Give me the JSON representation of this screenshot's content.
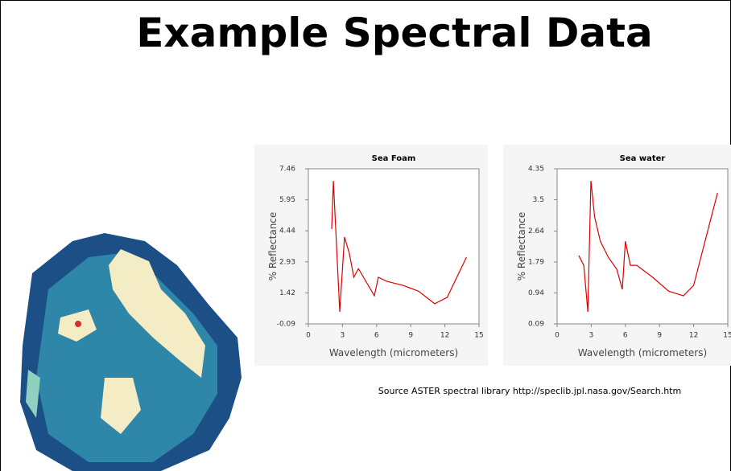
{
  "slide": {
    "title": "Example Spectral Data",
    "source": "Source ASTER spectral library http://speclib.jpl.nasa.gov/Search.htm"
  },
  "chart_data": [
    {
      "type": "line",
      "title": "Sea Foam",
      "x_label": "Wavelength (micrometers)",
      "y_label": "% Reflectance",
      "x": [
        2.05,
        2.2,
        2.76,
        3.18,
        3.6,
        4.0,
        4.4,
        5.8,
        6.15,
        6.9,
        8.3,
        9.7,
        11.1,
        12.2,
        13.9
      ],
      "series": [
        {
          "color": "#e00000",
          "values": [
            4.53,
            6.87,
            0.5,
            4.14,
            3.35,
            2.18,
            2.6,
            1.28,
            2.18,
            1.98,
            1.79,
            1.5,
            0.89,
            1.2,
            3.16
          ]
        }
      ],
      "xlim": [
        0,
        15
      ],
      "xticks": [
        0,
        3,
        6,
        9,
        12,
        15
      ],
      "ylim": [
        -0.09,
        7.46
      ],
      "yticks": [
        -0.09,
        1.42,
        2.93,
        4.44,
        5.95,
        7.46
      ]
    },
    {
      "type": "line",
      "title": "Sea water",
      "x_label": "Wavelength (micrometers)",
      "y_label": "% Reflectance",
      "x": [
        1.9,
        2.34,
        2.7,
        2.97,
        3.3,
        3.8,
        4.5,
        5.24,
        5.73,
        6.0,
        6.44,
        7.0,
        8.4,
        9.8,
        11.1,
        12.0,
        14.1
      ],
      "series": [
        {
          "color": "#e00000",
          "values": [
            1.97,
            1.7,
            0.42,
            4.02,
            3.03,
            2.36,
            1.92,
            1.59,
            1.04,
            2.36,
            1.7,
            1.7,
            1.37,
            0.99,
            0.86,
            1.15,
            3.69
          ]
        }
      ],
      "xlim": [
        0,
        15
      ],
      "xticks": [
        0,
        3,
        6,
        9,
        12,
        15
      ],
      "ylim": [
        0.09,
        4.35
      ],
      "yticks": [
        0.09,
        0.94,
        1.79,
        2.64,
        3.5,
        4.35
      ]
    }
  ]
}
